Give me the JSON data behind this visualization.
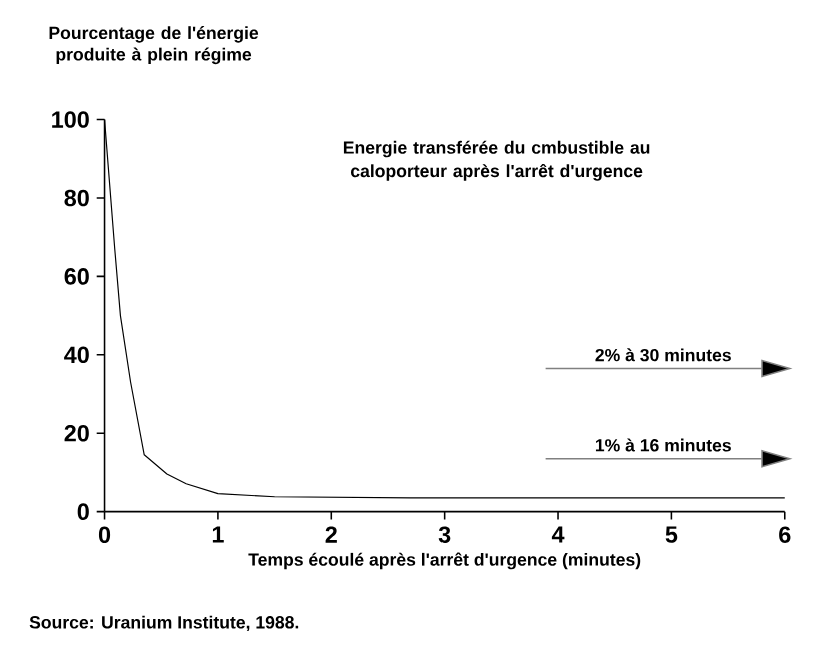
{
  "chart_data": {
    "type": "line",
    "title": "Energie transférée du cmbustible au caloporteur après l'arrêt d'urgence",
    "xlabel": "Temps écoulé après l'arrêt d'urgence (minutes)",
    "ylabel": "Pourcentage de l'énergie produite à plein régime",
    "annotations": [
      "2% à 30 minutes",
      "1% à 16 minutes",
      "Source: Uranium Institute, 1988."
    ],
    "x": [
      0,
      0.09,
      0.14,
      0.23,
      0.35,
      0.55,
      0.72,
      1.0,
      1.5,
      2.7,
      4,
      5,
      6
    ],
    "values": [
      100,
      67,
      50,
      33,
      14.5,
      9.6,
      7.1,
      4.6,
      3.8,
      3.5,
      3.5,
      3.5,
      3.5
    ],
    "color": "#000000",
    "xlim": [
      0,
      6
    ],
    "ylim": [
      0,
      100
    ],
    "xticks": [
      0,
      1,
      2,
      3,
      4,
      5,
      6
    ],
    "yticks": [
      0,
      20,
      40,
      60,
      80,
      100
    ],
    "grid": false,
    "marker": "none",
    "line_style": "solid"
  }
}
